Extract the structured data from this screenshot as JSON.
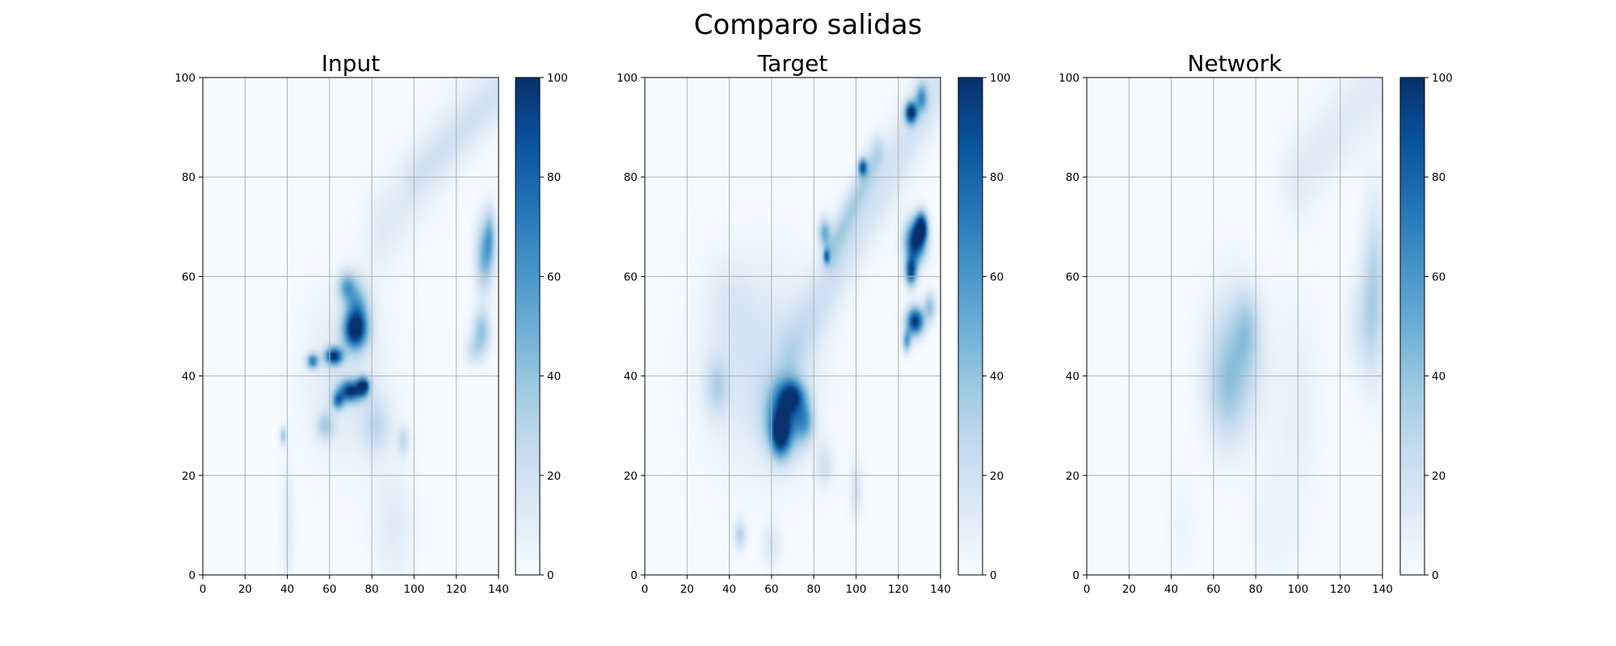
{
  "figure": {
    "title": "Comparo salidas"
  },
  "chart_data": [
    {
      "type": "heatmap",
      "title": "Input",
      "colormap": "Blues",
      "xlim": [
        0,
        140
      ],
      "ylim": [
        0,
        100
      ],
      "xticks": [
        "0",
        "20",
        "40",
        "60",
        "80",
        "100",
        "120",
        "140"
      ],
      "yticks": [
        "0",
        "20",
        "40",
        "60",
        "80",
        "100"
      ],
      "colorbar": {
        "range": [
          0,
          100
        ],
        "ticks": [
          "0",
          "20",
          "40",
          "60",
          "80",
          "100"
        ]
      },
      "grid": true,
      "blobs": [
        {
          "x": 62,
          "y": 44,
          "sx": 3,
          "sy": 1.2,
          "v": 95
        },
        {
          "x": 52,
          "y": 43,
          "sx": 2,
          "sy": 1,
          "v": 70
        },
        {
          "x": 72,
          "y": 49,
          "sx": 4,
          "sy": 2.5,
          "v": 75
        },
        {
          "x": 73,
          "y": 53,
          "sx": 4,
          "sy": 4,
          "v": 55
        },
        {
          "x": 68,
          "y": 58,
          "sx": 3,
          "sy": 2,
          "v": 45
        },
        {
          "x": 70,
          "y": 37,
          "sx": 4,
          "sy": 1.5,
          "v": 90
        },
        {
          "x": 76,
          "y": 38,
          "sx": 2,
          "sy": 1.2,
          "v": 95
        },
        {
          "x": 64,
          "y": 35,
          "sx": 2,
          "sy": 1.2,
          "v": 60
        },
        {
          "x": 58,
          "y": 30,
          "sx": 3,
          "sy": 2,
          "v": 30
        },
        {
          "x": 82,
          "y": 30,
          "sx": 5,
          "sy": 4,
          "v": 22
        },
        {
          "x": 95,
          "y": 27,
          "sx": 2,
          "sy": 2,
          "v": 25
        },
        {
          "x": 38,
          "y": 28,
          "sx": 1,
          "sy": 1.2,
          "v": 40
        },
        {
          "x": 68,
          "y": 40,
          "sx": 14,
          "sy": 12,
          "v": 14
        },
        {
          "x": 40,
          "y": 10,
          "sx": 2,
          "sy": 8,
          "v": 14
        },
        {
          "x": 90,
          "y": 10,
          "sx": 7,
          "sy": 8,
          "v": 12
        },
        {
          "x": 133,
          "y": 64,
          "sx": 3,
          "sy": 5,
          "v": 45
        },
        {
          "x": 136,
          "y": 68,
          "sx": 2,
          "sy": 4,
          "v": 38
        },
        {
          "x": 132,
          "y": 49,
          "sx": 3,
          "sy": 3,
          "v": 40
        },
        {
          "x": 128,
          "y": 45,
          "sx": 3,
          "sy": 2,
          "v": 20
        }
      ],
      "bands": [
        {
          "x1": 85,
          "y1": 70,
          "x2": 140,
          "y2": 100,
          "w": 6,
          "v": 12
        },
        {
          "x1": 100,
          "y1": 80,
          "x2": 140,
          "y2": 96,
          "w": 3,
          "v": 8
        }
      ]
    },
    {
      "type": "heatmap",
      "title": "Target",
      "colormap": "Blues",
      "xlim": [
        0,
        140
      ],
      "ylim": [
        0,
        100
      ],
      "xticks": [
        "0",
        "20",
        "40",
        "60",
        "80",
        "100",
        "120",
        "140"
      ],
      "yticks": [
        "0",
        "20",
        "40",
        "60",
        "80",
        "100"
      ],
      "colorbar": {
        "range": [
          0,
          100
        ],
        "ticks": [
          "0",
          "20",
          "40",
          "60",
          "80",
          "100"
        ]
      },
      "grid": true,
      "blobs": [
        {
          "x": 128,
          "y": 67,
          "sx": 3.5,
          "sy": 3,
          "v": 100
        },
        {
          "x": 131,
          "y": 70,
          "sx": 2,
          "sy": 2,
          "v": 95
        },
        {
          "x": 126,
          "y": 61,
          "sx": 2,
          "sy": 2,
          "v": 85
        },
        {
          "x": 128,
          "y": 51,
          "sx": 3,
          "sy": 2,
          "v": 100
        },
        {
          "x": 124,
          "y": 47,
          "sx": 1.5,
          "sy": 1.5,
          "v": 55
        },
        {
          "x": 135,
          "y": 54,
          "sx": 2,
          "sy": 2,
          "v": 40
        },
        {
          "x": 126,
          "y": 93,
          "sx": 2,
          "sy": 1.5,
          "v": 100
        },
        {
          "x": 131,
          "y": 96,
          "sx": 2,
          "sy": 2,
          "v": 50
        },
        {
          "x": 103,
          "y": 82,
          "sx": 1.5,
          "sy": 1.2,
          "v": 75
        },
        {
          "x": 86,
          "y": 64,
          "sx": 1,
          "sy": 1,
          "v": 60
        },
        {
          "x": 85,
          "y": 69,
          "sx": 2,
          "sy": 2,
          "v": 45
        },
        {
          "x": 66,
          "y": 32,
          "sx": 6,
          "sy": 5,
          "v": 75
        },
        {
          "x": 64,
          "y": 28,
          "sx": 3,
          "sy": 3,
          "v": 65
        },
        {
          "x": 70,
          "y": 36,
          "sx": 4,
          "sy": 2,
          "v": 55
        },
        {
          "x": 76,
          "y": 31,
          "sx": 3,
          "sy": 3,
          "v": 40
        },
        {
          "x": 34,
          "y": 38,
          "sx": 4,
          "sy": 4,
          "v": 25
        },
        {
          "x": 45,
          "y": 8,
          "sx": 2,
          "sy": 2,
          "v": 30
        },
        {
          "x": 60,
          "y": 6,
          "sx": 3,
          "sy": 3,
          "v": 15
        },
        {
          "x": 100,
          "y": 17,
          "sx": 2,
          "sy": 4,
          "v": 20
        },
        {
          "x": 85,
          "y": 22,
          "sx": 3,
          "sy": 3,
          "v": 18
        },
        {
          "x": 55,
          "y": 42,
          "sx": 18,
          "sy": 14,
          "v": 18
        },
        {
          "x": 40,
          "y": 55,
          "sx": 8,
          "sy": 6,
          "v": 8
        }
      ],
      "bands": [
        {
          "x1": 70,
          "y1": 45,
          "x2": 140,
          "y2": 100,
          "w": 5,
          "v": 18
        },
        {
          "x1": 88,
          "y1": 65,
          "x2": 110,
          "y2": 85,
          "w": 2.5,
          "v": 25
        }
      ]
    },
    {
      "type": "heatmap",
      "title": "Network",
      "colormap": "Blues",
      "xlim": [
        0,
        140
      ],
      "ylim": [
        0,
        100
      ],
      "xticks": [
        "0",
        "20",
        "40",
        "60",
        "80",
        "100",
        "120",
        "140"
      ],
      "yticks": [
        "0",
        "20",
        "40",
        "60",
        "80",
        "100"
      ],
      "colorbar": {
        "range": [
          0,
          100
        ],
        "ticks": [
          "0",
          "20",
          "40",
          "60",
          "80",
          "100"
        ]
      },
      "grid": true,
      "blobs": [
        {
          "x": 70,
          "y": 43,
          "sx": 9,
          "sy": 10,
          "v": 35
        },
        {
          "x": 76,
          "y": 50,
          "sx": 4,
          "sy": 5,
          "v": 18
        },
        {
          "x": 65,
          "y": 35,
          "sx": 6,
          "sy": 7,
          "v": 14
        },
        {
          "x": 136,
          "y": 58,
          "sx": 4,
          "sy": 12,
          "v": 30
        },
        {
          "x": 130,
          "y": 50,
          "sx": 5,
          "sy": 7,
          "v": 15
        },
        {
          "x": 100,
          "y": 35,
          "sx": 8,
          "sy": 15,
          "v": 8
        },
        {
          "x": 88,
          "y": 10,
          "sx": 8,
          "sy": 9,
          "v": 6
        },
        {
          "x": 45,
          "y": 10,
          "sx": 5,
          "sy": 8,
          "v": 5
        }
      ],
      "bands": [
        {
          "x1": 100,
          "y1": 80,
          "x2": 140,
          "y2": 100,
          "w": 6,
          "v": 12
        }
      ]
    }
  ]
}
